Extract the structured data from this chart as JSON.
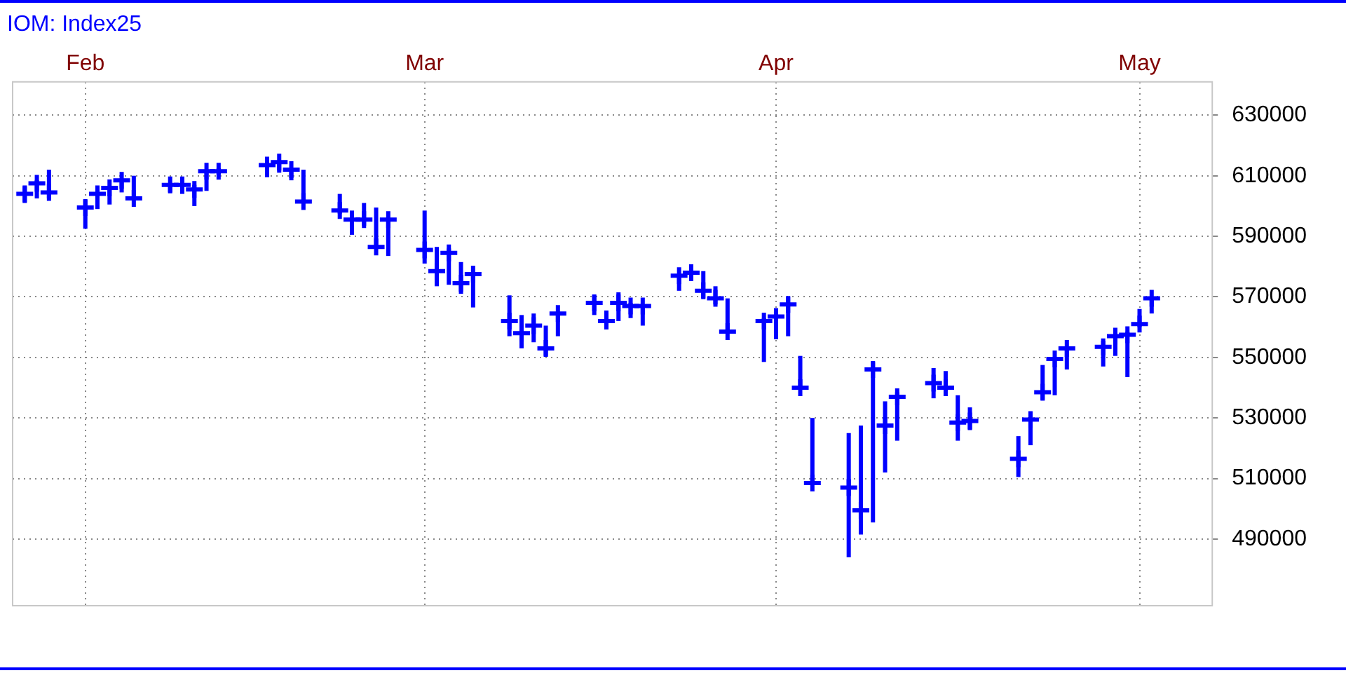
{
  "chart_data": {
    "type": "scatter",
    "title": "IOM: Index25",
    "x": [
      "--01-29",
      "--01-30",
      "--01-31",
      "--02-03",
      "--02-04",
      "--02-05",
      "--02-06",
      "--02-07",
      "--02-10",
      "--02-11",
      "--02-12",
      "--02-13",
      "--02-14",
      "--02-18",
      "--02-19",
      "--02-20",
      "--02-21",
      "--02-24",
      "--02-25",
      "--02-26",
      "--02-27",
      "--02-28",
      "--03-03",
      "--03-04",
      "--03-05",
      "--03-06",
      "--03-07",
      "--03-10",
      "--03-11",
      "--03-12",
      "--03-13",
      "--03-14",
      "--03-17",
      "--03-18",
      "--03-19",
      "--03-20",
      "--03-21",
      "--03-24",
      "--03-25",
      "--03-26",
      "--03-27",
      "--03-28",
      "--03-31",
      "--04-01",
      "--04-02",
      "--04-03",
      "--04-04",
      "--04-07",
      "--04-08",
      "--04-09",
      "--04-10",
      "--04-11",
      "--04-14",
      "--04-15",
      "--04-16",
      "--04-17",
      "--04-21",
      "--04-22",
      "--04-23",
      "--04-24",
      "--04-25",
      "--04-28",
      "--04-29",
      "--04-30",
      "--05-01",
      "--05-02"
    ],
    "values": [
      604000,
      607500,
      604500,
      599500,
      604000,
      606000,
      608500,
      602500,
      607000,
      607000,
      605500,
      611500,
      611500,
      613500,
      614500,
      612000,
      601500,
      598500,
      595500,
      595500,
      586500,
      595500,
      585500,
      578500,
      584500,
      574500,
      577500,
      562000,
      558000,
      560500,
      553000,
      564500,
      568000,
      562000,
      568000,
      567000,
      567000,
      577000,
      578000,
      572000,
      569500,
      558500,
      562000,
      563500,
      567500,
      540000,
      508500,
      507000,
      499500,
      546000,
      527500,
      537000,
      541500,
      540000,
      528500,
      529000,
      516500,
      529500,
      538500,
      549500,
      553000,
      553500,
      557000,
      557500,
      561000,
      569500
    ],
    "errors": [
      [
        601000,
        606500
      ],
      [
        602500,
        608500
      ],
      [
        602500,
        612000
      ],
      [
        592500,
        602000
      ],
      [
        599000,
        604000
      ],
      [
        600500,
        606500
      ],
      [
        604500,
        608500
      ],
      [
        602000,
        610000
      ],
      [
        604500,
        607000
      ],
      [
        604000,
        608000
      ],
      [
        600000,
        607000
      ],
      [
        605000,
        612000
      ],
      [
        610500,
        612500
      ],
      [
        609500,
        613500
      ],
      [
        611000,
        615000
      ],
      [
        608500,
        612000
      ],
      [
        601000,
        612000
      ],
      [
        597500,
        604000
      ],
      [
        590500,
        598500
      ],
      [
        593500,
        601000
      ],
      [
        586000,
        599500
      ],
      [
        583500,
        596000
      ],
      [
        581000,
        598500
      ],
      [
        573500,
        586500
      ],
      [
        574000,
        586000
      ],
      [
        571000,
        581500
      ],
      [
        566500,
        578000
      ],
      [
        557000,
        570500
      ],
      [
        553000,
        564000
      ],
      [
        555000,
        564500
      ],
      [
        550500,
        560500
      ],
      [
        557000,
        564500
      ],
      [
        564000,
        570500
      ],
      [
        559500,
        565500
      ],
      [
        562000,
        571500
      ],
      [
        563000,
        568000
      ],
      [
        560500,
        567000
      ],
      [
        572000,
        577500
      ],
      [
        576000,
        579000
      ],
      [
        569500,
        578500
      ],
      [
        567500,
        573500
      ],
      [
        558000,
        569500
      ],
      [
        548500,
        563000
      ],
      [
        556000,
        565000
      ],
      [
        557000,
        570000
      ],
      [
        539500,
        550500
      ],
      [
        508000,
        530000
      ],
      [
        484000,
        525000
      ],
      [
        491500,
        527500
      ],
      [
        495500,
        548500
      ],
      [
        512000,
        535500
      ],
      [
        522500,
        538500
      ],
      [
        536500,
        546500
      ],
      [
        539000,
        545500
      ],
      [
        522500,
        537500
      ],
      [
        526000,
        533500
      ],
      [
        510500,
        524000
      ],
      [
        521000,
        532000
      ],
      [
        536000,
        547500
      ],
      [
        537500,
        549500
      ],
      [
        546000,
        553000
      ],
      [
        547000,
        555500
      ],
      [
        550500,
        557500
      ],
      [
        543500,
        558500
      ],
      [
        560000,
        566000
      ],
      [
        564500,
        570000
      ]
    ],
    "color": "#0000ff",
    "marker": "cross",
    "xlim": [
      "--01-28",
      "--05-07"
    ],
    "xticks": [
      {
        "value": "--02-03",
        "label": "Feb"
      },
      {
        "value": "--03-03",
        "label": "Mar"
      },
      {
        "value": "--04-01",
        "label": "Apr"
      },
      {
        "value": "--05-01",
        "label": "May"
      }
    ],
    "ylim": [
      468000,
      641000
    ],
    "yticks": [
      490000,
      510000,
      530000,
      550000,
      570000,
      590000,
      610000,
      630000
    ],
    "grid": true
  }
}
